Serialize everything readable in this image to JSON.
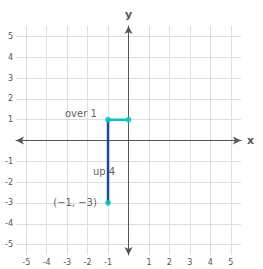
{
  "chart_data": {
    "type": "line",
    "xlabel": "x",
    "ylabel": "y",
    "xlim": [
      -5.5,
      5.5
    ],
    "ylim": [
      -5.5,
      5.5
    ],
    "xticks": [
      -5,
      -4,
      -3,
      -2,
      -1,
      1,
      2,
      3,
      4,
      5
    ],
    "yticks": [
      -5,
      -4,
      -3,
      -2,
      -1,
      1,
      2,
      3,
      4,
      5
    ],
    "grid": true,
    "series": [
      {
        "type": "line",
        "color": "#1a4f8a",
        "x": [
          -1,
          -1
        ],
        "values": [
          -3,
          1
        ]
      },
      {
        "type": "line",
        "color": "#00c8c8",
        "x": [
          -1,
          0
        ],
        "values": [
          1,
          1
        ]
      },
      {
        "type": "scatter",
        "color": "#00c8c8",
        "x": [
          -1,
          0,
          -1
        ],
        "values": [
          1,
          1,
          -3
        ]
      }
    ],
    "annotations": [
      {
        "text": "over 1",
        "x": -1.55,
        "y": 1.32
      },
      {
        "text": "up 4",
        "x": -0.65,
        "y": -1.5
      },
      {
        "text": "(−1, −3)",
        "x": -1.55,
        "y": -3.0
      }
    ]
  }
}
